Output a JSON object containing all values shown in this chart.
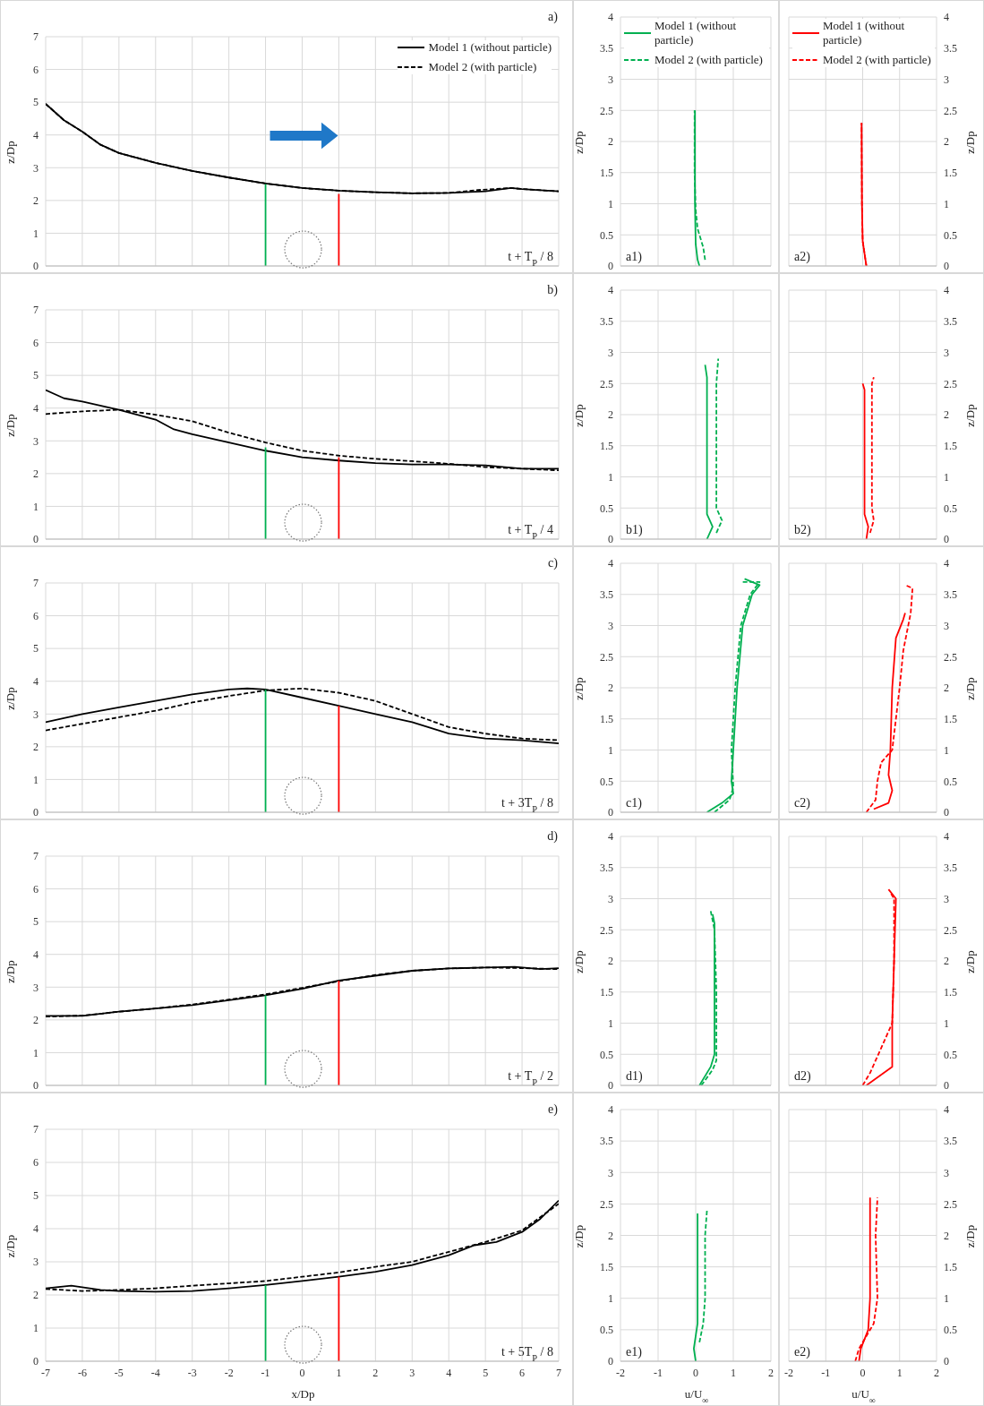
{
  "chart_data": [
    {
      "type": "line",
      "xlim": [
        -7,
        7
      ],
      "xticks": [
        -7,
        -6,
        -5,
        -4,
        -3,
        -2,
        -1,
        0,
        1,
        2,
        3,
        4,
        5,
        6,
        7
      ],
      "ylim": [
        0,
        7
      ],
      "yticks": [
        0,
        1,
        2,
        3,
        4,
        5,
        6,
        7
      ],
      "ylabel": "z/Dp",
      "tick_labels": "y",
      "grid": true,
      "legend": "top right",
      "annotations": [
        "a)",
        "t + T$_{P}$ / 8"
      ],
      "series": [
        {
          "name": "Model 1 (without particle)",
          "color": "#000000",
          "line_style": "solid",
          "x": [
            -7,
            -6.5,
            -6,
            -5.5,
            -5,
            -4,
            -3,
            -2,
            -1,
            0,
            1,
            2,
            3,
            4,
            5,
            5.7,
            6,
            7
          ],
          "values": [
            4.95,
            4.45,
            4.1,
            3.7,
            3.45,
            3.15,
            2.9,
            2.7,
            2.52,
            2.38,
            2.3,
            2.25,
            2.22,
            2.23,
            2.28,
            2.38,
            2.35,
            2.28
          ]
        },
        {
          "name": "Model 2 (with particle)",
          "color": "#000000",
          "line_style": "dashed",
          "x": [
            -7,
            -6.5,
            -6,
            -5.5,
            -5,
            -4,
            -3,
            -2,
            -1,
            0,
            1,
            2,
            3,
            4,
            4.8,
            5.7,
            6,
            7
          ],
          "values": [
            4.95,
            4.45,
            4.1,
            3.7,
            3.45,
            3.15,
            2.9,
            2.7,
            2.52,
            2.38,
            2.3,
            2.25,
            2.22,
            2.23,
            2.32,
            2.38,
            2.35,
            2.28
          ]
        },
        {
          "color": "#00b050",
          "line_style": "solid",
          "x": [
            -1,
            -1
          ],
          "values": [
            0,
            2.5
          ]
        },
        {
          "color": "#ff0000",
          "line_style": "solid",
          "x": [
            1,
            1
          ],
          "values": [
            0,
            2.2
          ]
        }
      ]
    },
    {
      "type": "line",
      "xlim": [
        -2,
        2
      ],
      "xticks": [
        -2,
        -1,
        0,
        1,
        2
      ],
      "ylim": [
        0,
        4
      ],
      "yticks": [
        0,
        0.5,
        1,
        1.5,
        2,
        2.5,
        3,
        3.5,
        4
      ],
      "ylabel": "z/Dp",
      "tick_labels": "y",
      "grid": true,
      "legend": "top",
      "annotations": [
        "a1)"
      ],
      "series": [
        {
          "name": "Model 1 (without particle)",
          "color": "#00b050",
          "line_style": "solid",
          "x": [
            0.1,
            0.05,
            0,
            -0.02,
            -0.02,
            -0.02
          ],
          "values": [
            0,
            0.1,
            0.35,
            1,
            2,
            2.5
          ]
        },
        {
          "name": "Model 2 (with particle)",
          "color": "#00b050",
          "line_style": "dashed",
          "x": [
            0.25,
            0.2,
            0.05,
            0,
            -0.03,
            -0.03
          ],
          "values": [
            0.1,
            0.3,
            0.6,
            0.9,
            1.5,
            2.5
          ]
        }
      ]
    },
    {
      "type": "line",
      "xlim": [
        -2,
        2
      ],
      "xticks": [
        -2,
        -1,
        0,
        1,
        2
      ],
      "y2lim": [
        0,
        4
      ],
      "y2ticks": [
        0,
        0.5,
        1,
        1.5,
        2,
        2.5,
        3,
        3.5,
        4
      ],
      "y2label": "z/Dp",
      "tick_labels": "y",
      "grid": true,
      "legend": "top",
      "annotations": [
        "a2)"
      ],
      "series": [
        {
          "name": "Model 1 (without particle)",
          "color": "#ff0000",
          "line_style": "solid",
          "axis": "y2",
          "x": [
            0.1,
            0.05,
            0,
            -0.02,
            -0.03
          ],
          "values": [
            0,
            0.2,
            0.4,
            1,
            2.3
          ]
        },
        {
          "name": "Model 2 (with particle)",
          "color": "#ff0000",
          "line_style": "dashed",
          "axis": "y2",
          "x": [
            0.1,
            0.05,
            0,
            -0.02,
            -0.03
          ],
          "values": [
            0,
            0.2,
            0.4,
            1,
            2.3
          ]
        }
      ]
    },
    {
      "type": "line",
      "xlim": [
        -7,
        7
      ],
      "xticks": [
        -7,
        -6,
        -5,
        -4,
        -3,
        -2,
        -1,
        0,
        1,
        2,
        3,
        4,
        5,
        6,
        7
      ],
      "ylim": [
        0,
        7
      ],
      "yticks": [
        0,
        1,
        2,
        3,
        4,
        5,
        6,
        7
      ],
      "ylabel": "z/Dp",
      "tick_labels": "y",
      "grid": true,
      "annotations": [
        "b)",
        "t + T$_{P}$ / 4"
      ],
      "series": [
        {
          "color": "#000000",
          "line_style": "solid",
          "x": [
            -7,
            -6.5,
            -6,
            -5,
            -4,
            -3.5,
            -3,
            -2,
            -1,
            0,
            1,
            2,
            3,
            4,
            5,
            6,
            7
          ],
          "values": [
            4.55,
            4.3,
            4.2,
            3.95,
            3.65,
            3.35,
            3.2,
            2.95,
            2.7,
            2.5,
            2.4,
            2.32,
            2.28,
            2.28,
            2.25,
            2.15,
            2.15
          ]
        },
        {
          "color": "#000000",
          "line_style": "dashed",
          "x": [
            -7,
            -6,
            -5,
            -4,
            -3,
            -2,
            -1,
            0,
            1,
            2,
            3,
            4,
            5,
            6,
            7
          ],
          "values": [
            3.82,
            3.9,
            3.95,
            3.8,
            3.6,
            3.25,
            2.95,
            2.7,
            2.55,
            2.45,
            2.38,
            2.3,
            2.2,
            2.15,
            2.1
          ]
        },
        {
          "color": "#00b050",
          "line_style": "solid",
          "x": [
            -1,
            -1
          ],
          "values": [
            0,
            2.8
          ]
        },
        {
          "color": "#ff0000",
          "line_style": "solid",
          "x": [
            1,
            1
          ],
          "values": [
            0,
            2.5
          ]
        }
      ]
    },
    {
      "type": "line",
      "xlim": [
        -2,
        2
      ],
      "xticks": [
        -2,
        -1,
        0,
        1,
        2
      ],
      "ylim": [
        0,
        4
      ],
      "yticks": [
        0,
        0.5,
        1,
        1.5,
        2,
        2.5,
        3,
        3.5,
        4
      ],
      "ylabel": "z/Dp",
      "tick_labels": "y",
      "grid": true,
      "annotations": [
        "b1)"
      ],
      "series": [
        {
          "color": "#00b050",
          "line_style": "solid",
          "x": [
            0.3,
            0.45,
            0.3,
            0.3,
            0.3,
            0.25
          ],
          "values": [
            0,
            0.2,
            0.4,
            1,
            2.6,
            2.8
          ]
        },
        {
          "color": "#00b050",
          "line_style": "dashed",
          "x": [
            0.55,
            0.7,
            0.55,
            0.55,
            0.55,
            0.6
          ],
          "values": [
            0.1,
            0.3,
            0.5,
            2,
            2.5,
            2.9
          ]
        }
      ]
    },
    {
      "type": "line",
      "xlim": [
        -2,
        2
      ],
      "xticks": [
        -2,
        -1,
        0,
        1,
        2
      ],
      "y2lim": [
        0,
        4
      ],
      "y2ticks": [
        0,
        0.5,
        1,
        1.5,
        2,
        2.5,
        3,
        3.5,
        4
      ],
      "y2label": "z/Dp",
      "tick_labels": "y",
      "grid": true,
      "annotations": [
        "b2)"
      ],
      "series": [
        {
          "color": "#ff0000",
          "line_style": "solid",
          "axis": "y2",
          "x": [
            0.1,
            0.15,
            0.05,
            0.05,
            0
          ],
          "values": [
            0,
            0.2,
            0.4,
            2.4,
            2.5
          ]
        },
        {
          "color": "#ff0000",
          "line_style": "dashed",
          "axis": "y2",
          "x": [
            0.2,
            0.3,
            0.25,
            0.25,
            0.3
          ],
          "values": [
            0.1,
            0.3,
            0.5,
            2.5,
            2.6
          ]
        }
      ]
    },
    {
      "type": "line",
      "xlim": [
        -7,
        7
      ],
      "xticks": [
        -7,
        -6,
        -5,
        -4,
        -3,
        -2,
        -1,
        0,
        1,
        2,
        3,
        4,
        5,
        6,
        7
      ],
      "ylim": [
        0,
        7
      ],
      "yticks": [
        0,
        1,
        2,
        3,
        4,
        5,
        6,
        7
      ],
      "ylabel": "z/Dp",
      "tick_labels": "y",
      "grid": true,
      "annotations": [
        "c)",
        "t + 3T$_{P}$ / 8"
      ],
      "series": [
        {
          "color": "#000000",
          "line_style": "solid",
          "x": [
            -7,
            -6,
            -5,
            -4,
            -3,
            -2,
            -1.5,
            -1,
            0,
            1,
            2,
            3,
            4,
            5,
            6,
            7
          ],
          "values": [
            2.75,
            3,
            3.2,
            3.4,
            3.6,
            3.75,
            3.78,
            3.75,
            3.5,
            3.25,
            3,
            2.75,
            2.4,
            2.25,
            2.2,
            2.1
          ]
        },
        {
          "color": "#000000",
          "line_style": "dashed",
          "x": [
            -7,
            -6,
            -5,
            -4,
            -3,
            -2,
            -1,
            0,
            1,
            2,
            3,
            4,
            5,
            6,
            7
          ],
          "values": [
            2.5,
            2.7,
            2.9,
            3.1,
            3.35,
            3.55,
            3.72,
            3.78,
            3.65,
            3.4,
            3,
            2.6,
            2.4,
            2.25,
            2.2
          ]
        },
        {
          "color": "#00b050",
          "line_style": "solid",
          "x": [
            -1,
            -1
          ],
          "values": [
            0,
            3.75
          ]
        },
        {
          "color": "#ff0000",
          "line_style": "solid",
          "x": [
            1,
            1
          ],
          "values": [
            0,
            3.25
          ]
        }
      ]
    },
    {
      "type": "line",
      "xlim": [
        -2,
        2
      ],
      "xticks": [
        -2,
        -1,
        0,
        1,
        2
      ],
      "ylim": [
        0,
        4
      ],
      "yticks": [
        0,
        0.5,
        1,
        1.5,
        2,
        2.5,
        3,
        3.5,
        4
      ],
      "ylabel": "z/Dp",
      "tick_labels": "y",
      "grid": true,
      "annotations": [
        "c1)"
      ],
      "series": [
        {
          "color": "#00b050",
          "line_style": "solid",
          "x": [
            0.3,
            0.7,
            1,
            0.95,
            1,
            1.1,
            1.25,
            1.5,
            1.7,
            1.3
          ],
          "values": [
            0,
            0.15,
            0.3,
            0.5,
            1,
            2,
            3,
            3.5,
            3.65,
            3.75
          ]
        },
        {
          "color": "#00b050",
          "line_style": "dashed",
          "x": [
            0.5,
            0.9,
            1,
            0.95,
            1.05,
            1.2,
            1.45,
            1.7,
            1.25
          ],
          "values": [
            0,
            0.2,
            0.4,
            1,
            2,
            3,
            3.5,
            3.7,
            3.7
          ]
        }
      ]
    },
    {
      "type": "line",
      "xlim": [
        -2,
        2
      ],
      "xticks": [
        -2,
        -1,
        0,
        1,
        2
      ],
      "y2lim": [
        0,
        4
      ],
      "y2ticks": [
        0,
        0.5,
        1,
        1.5,
        2,
        2.5,
        3,
        3.5,
        4
      ],
      "y2label": "z/Dp",
      "tick_labels": "y",
      "grid": true,
      "annotations": [
        "c2)"
      ],
      "series": [
        {
          "color": "#ff0000",
          "line_style": "solid",
          "axis": "y2",
          "x": [
            0.3,
            0.7,
            0.8,
            0.7,
            0.75,
            0.8,
            0.9,
            1.1,
            1.15
          ],
          "values": [
            0.05,
            0.15,
            0.35,
            0.6,
            1,
            2,
            2.8,
            3.1,
            3.2
          ]
        },
        {
          "color": "#ff0000",
          "line_style": "dashed",
          "axis": "y2",
          "x": [
            0.1,
            0.35,
            0.4,
            0.5,
            0.8,
            1,
            1.1,
            1.3,
            1.35,
            1.15
          ],
          "values": [
            0,
            0.2,
            0.5,
            0.8,
            1,
            2,
            2.6,
            3.2,
            3.6,
            3.65
          ]
        }
      ]
    },
    {
      "type": "line",
      "xlim": [
        -7,
        7
      ],
      "xticks": [
        -7,
        -6,
        -5,
        -4,
        -3,
        -2,
        -1,
        0,
        1,
        2,
        3,
        4,
        5,
        6,
        7
      ],
      "ylim": [
        0,
        7
      ],
      "yticks": [
        0,
        1,
        2,
        3,
        4,
        5,
        6,
        7
      ],
      "ylabel": "z/Dp",
      "tick_labels": "y",
      "grid": true,
      "annotations": [
        "d)",
        "t + T$_{P}$ / 2"
      ],
      "series": [
        {
          "color": "#000000",
          "line_style": "solid",
          "x": [
            -7,
            -6,
            -5,
            -4,
            -3,
            -2,
            -1,
            0,
            1,
            2,
            3,
            4,
            5,
            5.8,
            6.5,
            7
          ],
          "values": [
            2.12,
            2.12,
            2.25,
            2.35,
            2.45,
            2.6,
            2.75,
            2.95,
            3.2,
            3.35,
            3.5,
            3.57,
            3.6,
            3.62,
            3.55,
            3.58
          ]
        },
        {
          "color": "#000000",
          "line_style": "dashed",
          "x": [
            -7,
            -6,
            -5,
            -4,
            -3,
            -2,
            -1,
            0,
            1,
            2,
            3,
            4,
            5,
            6,
            7
          ],
          "values": [
            2.1,
            2.13,
            2.25,
            2.35,
            2.47,
            2.62,
            2.78,
            2.98,
            3.18,
            3.37,
            3.5,
            3.57,
            3.6,
            3.58,
            3.55
          ]
        },
        {
          "color": "#00b050",
          "line_style": "solid",
          "x": [
            -1,
            -1
          ],
          "values": [
            0,
            2.75
          ]
        },
        {
          "color": "#ff0000",
          "line_style": "solid",
          "x": [
            1,
            1
          ],
          "values": [
            0,
            3.2
          ]
        }
      ]
    },
    {
      "type": "line",
      "xlim": [
        -2,
        2
      ],
      "xticks": [
        -2,
        -1,
        0,
        1,
        2
      ],
      "ylim": [
        0,
        4
      ],
      "yticks": [
        0,
        0.5,
        1,
        1.5,
        2,
        2.5,
        3,
        3.5,
        4
      ],
      "ylabel": "z/Dp",
      "tick_labels": "y",
      "grid": true,
      "annotations": [
        "d1)"
      ],
      "series": [
        {
          "color": "#00b050",
          "line_style": "solid",
          "x": [
            0.1,
            0.4,
            0.5,
            0.5,
            0.5,
            0.5,
            0.45
          ],
          "values": [
            0,
            0.3,
            0.5,
            1,
            2,
            2.6,
            2.75
          ]
        },
        {
          "color": "#00b050",
          "line_style": "dashed",
          "x": [
            0.15,
            0.45,
            0.55,
            0.55,
            0.5,
            0.4
          ],
          "values": [
            0,
            0.25,
            0.4,
            1.5,
            2.5,
            2.8
          ]
        }
      ]
    },
    {
      "type": "line",
      "xlim": [
        -2,
        2
      ],
      "xticks": [
        -2,
        -1,
        0,
        1,
        2
      ],
      "y2lim": [
        0,
        4
      ],
      "y2ticks": [
        0,
        0.5,
        1,
        1.5,
        2,
        2.5,
        3,
        3.5,
        4
      ],
      "y2label": "z/Dp",
      "tick_labels": "y",
      "grid": true,
      "annotations": [
        "d2)"
      ],
      "series": [
        {
          "color": "#ff0000",
          "line_style": "solid",
          "axis": "y2",
          "x": [
            0.1,
            0.8,
            0.8,
            0.85,
            0.9,
            0.7
          ],
          "values": [
            0,
            0.3,
            1,
            2,
            3,
            3.15
          ]
        },
        {
          "color": "#ff0000",
          "line_style": "dashed",
          "axis": "y2",
          "x": [
            0,
            0.2,
            0.5,
            0.8,
            0.85,
            0.85,
            0.75
          ],
          "values": [
            0,
            0.2,
            0.6,
            1,
            2,
            3,
            3.1
          ]
        }
      ]
    },
    {
      "type": "line",
      "xlim": [
        -7,
        7
      ],
      "xticks": [
        -7,
        -6,
        -5,
        -4,
        -3,
        -2,
        -1,
        0,
        1,
        2,
        3,
        4,
        5,
        6,
        7
      ],
      "ylim": [
        0,
        7
      ],
      "yticks": [
        0,
        1,
        2,
        3,
        4,
        5,
        6,
        7
      ],
      "xlabel": "x/Dp",
      "ylabel": "z/Dp",
      "grid": true,
      "annotations": [
        "e)",
        "t + 5T$_{P}$ / 8"
      ],
      "series": [
        {
          "color": "#000000",
          "line_style": "solid",
          "x": [
            -7,
            -6.3,
            -5.5,
            -5,
            -4,
            -3,
            -2,
            -1,
            0,
            1,
            2,
            3,
            4,
            4.7,
            5.3,
            6,
            6.5,
            7
          ],
          "values": [
            2.2,
            2.28,
            2.15,
            2.12,
            2.1,
            2.12,
            2.2,
            2.3,
            2.42,
            2.55,
            2.7,
            2.9,
            3.2,
            3.5,
            3.6,
            3.9,
            4.3,
            4.85
          ]
        },
        {
          "color": "#000000",
          "line_style": "dashed",
          "x": [
            -7,
            -6,
            -5,
            -4,
            -3,
            -2,
            -1,
            0,
            1,
            2,
            3,
            4,
            5,
            6,
            7
          ],
          "values": [
            2.18,
            2.12,
            2.15,
            2.2,
            2.28,
            2.35,
            2.42,
            2.55,
            2.68,
            2.85,
            3,
            3.3,
            3.6,
            3.95,
            4.75
          ]
        },
        {
          "color": "#00b050",
          "line_style": "solid",
          "x": [
            -1,
            -1
          ],
          "values": [
            0,
            2.3
          ]
        },
        {
          "color": "#ff0000",
          "line_style": "solid",
          "x": [
            1,
            1
          ],
          "values": [
            0,
            2.55
          ]
        }
      ]
    },
    {
      "type": "line",
      "xlim": [
        -2,
        2
      ],
      "xticks": [
        -2,
        -1,
        0,
        1,
        2
      ],
      "ylim": [
        0,
        4
      ],
      "yticks": [
        0,
        0.5,
        1,
        1.5,
        2,
        2.5,
        3,
        3.5,
        4
      ],
      "xlabel": "u/U$_{∞}$",
      "ylabel": "z/Dp",
      "grid": true,
      "annotations": [
        "e1)"
      ],
      "series": [
        {
          "color": "#00b050",
          "line_style": "solid",
          "x": [
            0,
            -0.05,
            0.05,
            0.05,
            0.05,
            0.05
          ],
          "values": [
            0,
            0.2,
            0.6,
            1,
            2,
            2.35
          ]
        },
        {
          "color": "#00b050",
          "line_style": "dashed",
          "x": [
            0.1,
            0.2,
            0.25,
            0.25,
            0.3
          ],
          "values": [
            0.3,
            0.6,
            1,
            2,
            2.4
          ]
        }
      ]
    },
    {
      "type": "line",
      "xlim": [
        -2,
        2
      ],
      "xticks": [
        -2,
        -1,
        0,
        1,
        2
      ],
      "y2lim": [
        0,
        4
      ],
      "y2ticks": [
        0,
        0.5,
        1,
        1.5,
        2,
        2.5,
        3,
        3.5,
        4
      ],
      "xlabel": "u/U$_{∞}$",
      "y2label": "z/Dp",
      "grid": true,
      "annotations": [
        "e2)"
      ],
      "series": [
        {
          "color": "#ff0000",
          "line_style": "solid",
          "axis": "y2",
          "x": [
            -0.1,
            -0.05,
            0.15,
            0.2,
            0.2,
            0.2
          ],
          "values": [
            0,
            0.2,
            0.5,
            1,
            2,
            2.6
          ]
        },
        {
          "color": "#ff0000",
          "line_style": "dashed",
          "axis": "y2",
          "x": [
            -0.2,
            -0.1,
            0.3,
            0.4,
            0.35,
            0.4
          ],
          "values": [
            0,
            0.2,
            0.6,
            1,
            2,
            2.6
          ]
        }
      ]
    }
  ]
}
